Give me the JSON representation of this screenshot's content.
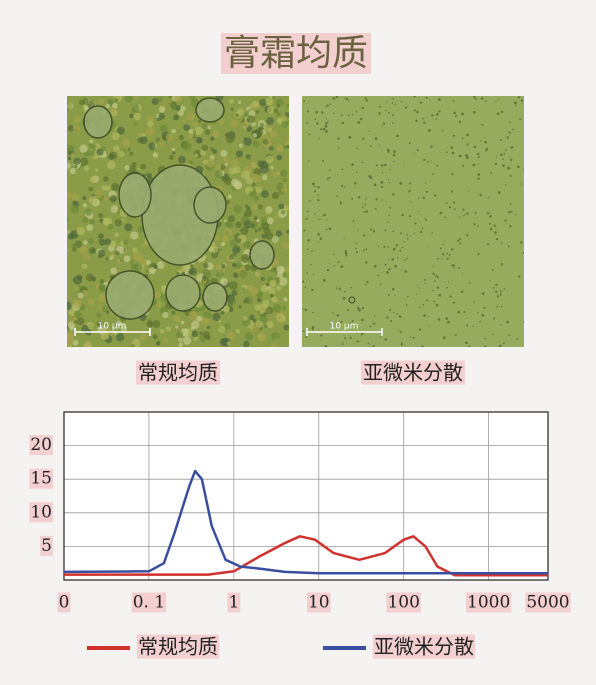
{
  "title": "膏霜均质",
  "images": [
    {
      "caption": "常规均质",
      "scale_label": "10 μm"
    },
    {
      "caption": "亚微米分散",
      "scale_label": "10 μm"
    }
  ],
  "chart_data": {
    "type": "line",
    "xscale": "log",
    "xlim": [
      0.01,
      5000
    ],
    "xticks": [
      {
        "value": 0.01,
        "label": "0"
      },
      {
        "value": 0.1,
        "label": "0. 1"
      },
      1,
      10,
      100,
      1000,
      5000
    ],
    "ylim": [
      0,
      25
    ],
    "yticks": [
      5,
      10,
      15,
      20
    ],
    "grid": true,
    "series": [
      {
        "name": "常规均质",
        "color": "#d0312d",
        "x": [
          0.01,
          0.5,
          1,
          2,
          4,
          6,
          9,
          15,
          30,
          60,
          100,
          130,
          180,
          250,
          400,
          5000
        ],
        "values": [
          0.8,
          0.8,
          1.3,
          3.5,
          5.5,
          6.5,
          6,
          4,
          3,
          4,
          6,
          6.5,
          5,
          2,
          0.7,
          0.7
        ]
      },
      {
        "name": "亚微米分散",
        "color": "#3a4ea0",
        "x": [
          0.01,
          0.1,
          0.15,
          0.2,
          0.3,
          0.35,
          0.42,
          0.55,
          0.8,
          1.2,
          2,
          4,
          10,
          100,
          1000,
          5000
        ],
        "values": [
          1.2,
          1.3,
          2.5,
          7,
          14,
          16.2,
          15,
          8,
          3,
          2,
          1.7,
          1.2,
          1,
          1,
          1,
          1
        ]
      }
    ]
  }
}
